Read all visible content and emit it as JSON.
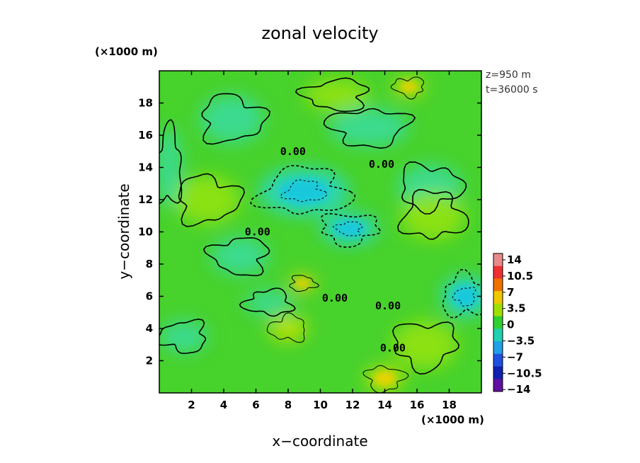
{
  "chart_data": {
    "type": "heatmap",
    "title": "zonal velocity",
    "xlabel": "x−coordinate",
    "ylabel": "y−coordinate",
    "x_unit": "(×1000 m)",
    "y_unit": "(×1000 m)",
    "xlim": [
      0,
      20
    ],
    "ylim": [
      0,
      20
    ],
    "x_ticks": [
      "2",
      "4",
      "6",
      "8",
      "10",
      "12",
      "14",
      "16",
      "18"
    ],
    "y_ticks": [
      "2",
      "4",
      "6",
      "8",
      "10",
      "12",
      "14",
      "16",
      "18"
    ],
    "x_tick_values": [
      2,
      4,
      6,
      8,
      10,
      12,
      14,
      16,
      18
    ],
    "y_tick_values": [
      2,
      4,
      6,
      8,
      10,
      12,
      14,
      16,
      18
    ],
    "info_lines": [
      "z=950 m",
      "t=36000 s"
    ],
    "colorbar": {
      "labels": [
        "14",
        "10.5",
        "7",
        "3.5",
        "0",
        "−3.5",
        "−7",
        "−10.5",
        "−14"
      ],
      "levels": [
        14,
        10.5,
        7,
        3.5,
        0,
        -3.5,
        -7,
        -10.5,
        -14
      ],
      "colors": [
        "#e88a8a",
        "#f03030",
        "#f07000",
        "#f0c800",
        "#a0e000",
        "#30d030",
        "#20d0b0",
        "#20a0e8",
        "#2050e0",
        "#1020b0",
        "#6010a0"
      ]
    },
    "contour_labels": [
      "0.00",
      "0.00",
      "0.00",
      "0.00",
      "0.00",
      "0.00"
    ],
    "contour_label_positions": [
      [
        8.3,
        15.0
      ],
      [
        13.8,
        14.2
      ],
      [
        6.1,
        10.0
      ],
      [
        10.9,
        5.9
      ],
      [
        14.2,
        5.4
      ],
      [
        14.5,
        2.8
      ]
    ],
    "field_regions": [
      {
        "kind": "low",
        "x": 9.0,
        "y": 12.5,
        "rx": 2.8,
        "ry": 1.5,
        "value": -3.0
      },
      {
        "kind": "low",
        "x": 4.5,
        "y": 17.0,
        "rx": 2.0,
        "ry": 1.5,
        "value": -2.0
      },
      {
        "kind": "low",
        "x": 11.8,
        "y": 10.2,
        "rx": 1.8,
        "ry": 1.0,
        "value": -2.5
      },
      {
        "kind": "low",
        "x": 5.0,
        "y": 8.5,
        "rx": 1.8,
        "ry": 1.2,
        "value": -2.0
      },
      {
        "kind": "low",
        "x": 6.8,
        "y": 5.6,
        "rx": 1.5,
        "ry": 0.8,
        "value": -2.0
      },
      {
        "kind": "low",
        "x": 19.0,
        "y": 6.0,
        "rx": 1.5,
        "ry": 1.3,
        "value": -2.5
      },
      {
        "kind": "low",
        "x": 16.8,
        "y": 12.8,
        "rx": 2.0,
        "ry": 1.4,
        "value": -1.5
      },
      {
        "kind": "low",
        "x": 13.0,
        "y": 16.5,
        "rx": 2.5,
        "ry": 1.2,
        "value": -1.5
      },
      {
        "kind": "low",
        "x": 1.5,
        "y": 3.5,
        "rx": 1.5,
        "ry": 1.0,
        "value": -1.5
      },
      {
        "kind": "low",
        "x": 0.6,
        "y": 14.0,
        "rx": 0.8,
        "ry": 2.5,
        "value": -1.5
      },
      {
        "kind": "high",
        "x": 8.9,
        "y": 6.8,
        "rx": 0.8,
        "ry": 0.5,
        "value": 5.0
      },
      {
        "kind": "high",
        "x": 14.0,
        "y": 0.9,
        "rx": 1.2,
        "ry": 0.8,
        "value": 3.5
      },
      {
        "kind": "high",
        "x": 15.5,
        "y": 19.0,
        "rx": 1.0,
        "ry": 0.6,
        "value": 3.5
      },
      {
        "kind": "high",
        "x": 8.0,
        "y": 4.0,
        "rx": 1.2,
        "ry": 0.8,
        "value": 3.0
      },
      {
        "kind": "high",
        "x": 17.0,
        "y": 11.0,
        "rx": 2.0,
        "ry": 1.5,
        "value": 2.0
      },
      {
        "kind": "high",
        "x": 3.0,
        "y": 12.0,
        "rx": 2.0,
        "ry": 1.5,
        "value": 2.0
      },
      {
        "kind": "high",
        "x": 16.5,
        "y": 3.0,
        "rx": 2.0,
        "ry": 1.5,
        "value": 2.0
      },
      {
        "kind": "high",
        "x": 11.0,
        "y": 18.5,
        "rx": 2.0,
        "ry": 1.0,
        "value": 1.5
      }
    ],
    "grid": false,
    "legend": "right"
  }
}
